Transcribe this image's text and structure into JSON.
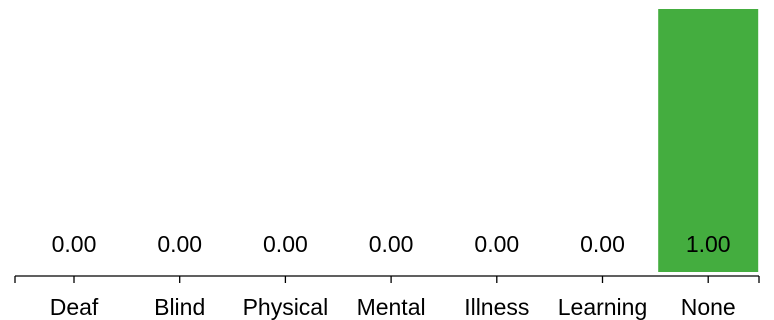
{
  "chart_data": {
    "type": "bar",
    "categories": [
      "Deaf",
      "Blind",
      "Physical",
      "Mental",
      "Illness",
      "Learning",
      "None"
    ],
    "values": [
      0.0,
      0.0,
      0.0,
      0.0,
      0.0,
      0.0,
      1.0
    ],
    "data_labels": [
      "0.00",
      "0.00",
      "0.00",
      "0.00",
      "0.00",
      "0.00",
      "1.00"
    ],
    "title": "",
    "xlabel": "",
    "ylabel": "",
    "ylim": [
      0,
      1
    ],
    "grid": false,
    "legend": "none",
    "bar_color": "#44ad3f",
    "text_color": "#000000"
  }
}
